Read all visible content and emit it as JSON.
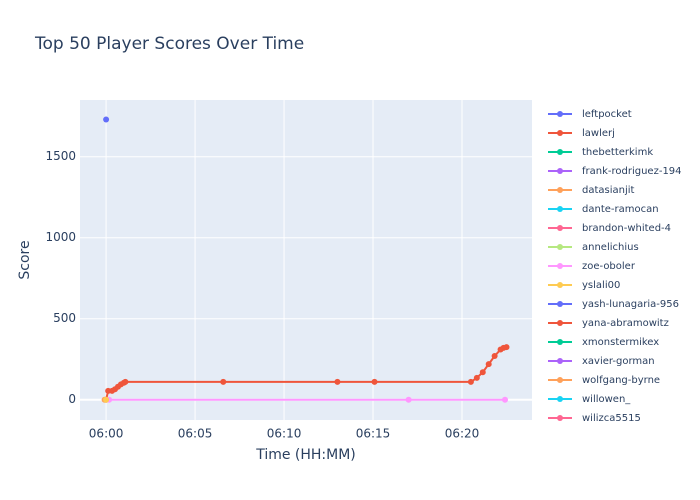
{
  "chart_data": {
    "type": "line",
    "title": "Top 50 Player Scores Over Time",
    "x_label": "Time (HH:MM)",
    "y_label": "Score",
    "xlim": [
      "05:58:32",
      "06:23:56"
    ],
    "xticks": [
      "06:00",
      "06:05",
      "06:10",
      "06:15",
      "06:20"
    ],
    "ylim": [
      -125,
      1850
    ],
    "yticks": [
      0,
      500,
      1000,
      1500
    ],
    "grid": true,
    "legend": "right",
    "series": [
      {
        "name": "leftpocket",
        "color": "#636efa",
        "x": [
          "06:00:00"
        ],
        "values": [
          1730
        ]
      },
      {
        "name": "lawlerj",
        "color": "#EF553B",
        "x": [
          "06:00:00",
          "06:00:07",
          "06:00:20",
          "06:00:30",
          "06:00:40",
          "06:00:50",
          "06:01:00",
          "06:01:05",
          "06:06:35",
          "06:13:00",
          "06:15:05",
          "06:20:30",
          "06:20:50",
          "06:21:10",
          "06:21:30",
          "06:21:50",
          "06:22:10",
          "06:22:20",
          "06:22:30"
        ],
        "values": [
          0,
          55,
          55,
          65,
          80,
          95,
          105,
          110,
          110,
          110,
          110,
          110,
          135,
          170,
          220,
          270,
          310,
          320,
          325
        ]
      },
      {
        "name": "thebetterkimk",
        "color": "#00cc96",
        "x": [],
        "values": []
      },
      {
        "name": "frank-rodriguez-194",
        "color": "#ab63fa",
        "x": [],
        "values": []
      },
      {
        "name": "datasianjit",
        "color": "#FFA15A",
        "x": [
          "05:59:55"
        ],
        "values": [
          0
        ]
      },
      {
        "name": "dante-ramocan",
        "color": "#19d3f3",
        "x": [],
        "values": []
      },
      {
        "name": "brandon-whited-4",
        "color": "#FF6692",
        "x": [],
        "values": []
      },
      {
        "name": "annelichius",
        "color": "#B6E880",
        "x": [],
        "values": []
      },
      {
        "name": "zoe-oboler",
        "color": "#FF97FF",
        "x": [
          "06:00:10",
          "06:17:00",
          "06:22:25"
        ],
        "values": [
          0,
          0,
          0
        ]
      },
      {
        "name": "yslali00",
        "color": "#FECB52",
        "x": [
          "06:00:00"
        ],
        "values": [
          0
        ]
      },
      {
        "name": "yash-lunagaria-956",
        "color": "#636efa",
        "x": [],
        "values": []
      },
      {
        "name": "yana-abramowitz",
        "color": "#EF553B",
        "x": [],
        "values": []
      },
      {
        "name": "xmonstermikex",
        "color": "#00cc96",
        "x": [],
        "values": []
      },
      {
        "name": "xavier-gorman",
        "color": "#ab63fa",
        "x": [],
        "values": []
      },
      {
        "name": "wolfgang-byrne",
        "color": "#FFA15A",
        "x": [],
        "values": []
      },
      {
        "name": "willowen_",
        "color": "#19d3f3",
        "x": [],
        "values": []
      },
      {
        "name": "wilizca5515",
        "color": "#FF6692",
        "x": [],
        "values": []
      }
    ]
  }
}
